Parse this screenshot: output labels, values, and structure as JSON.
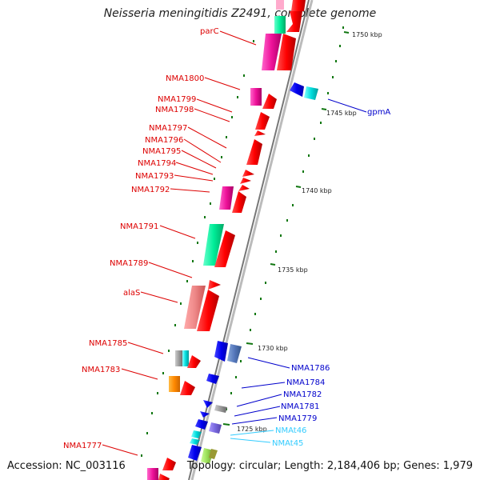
{
  "header": {
    "title": "Neisseria meningitidis Z2491, complete genome"
  },
  "footer": {
    "accession": "Accession: NC_003116",
    "topology": "Topology: circular; Length: 2,184,406 bp; Genes: 1,979"
  },
  "scale": {
    "ticks": [
      "1750 kbp",
      "1745 kbp",
      "1740 kbp",
      "1735 kbp",
      "1730 kbp",
      "1725 kbp"
    ]
  },
  "labels": {
    "left": [
      "parC",
      "NMA1800",
      "NMA1799",
      "NMA1798",
      "NMA1797",
      "NMA1796",
      "NMA1795",
      "NMA1794",
      "NMA1793",
      "NMA1792",
      "NMA1791",
      "NMA1789",
      "alaS",
      "NMA1785",
      "NMA1783",
      "NMA1777"
    ],
    "right": [
      "gpmA",
      "NMA1786",
      "NMA1784",
      "NMA1782",
      "NMA1781",
      "NMA1779",
      "NMAt46",
      "NMAt45"
    ]
  },
  "colors": {
    "forward_gene": "#ff0000",
    "reverse_gene": "#0000ee",
    "trna": "#00bfff",
    "left_label": "#dd0000",
    "right_label": "#0000cc",
    "trna_label": "#33ccff",
    "tick_mark": "#117711",
    "backbone": "#999999"
  }
}
